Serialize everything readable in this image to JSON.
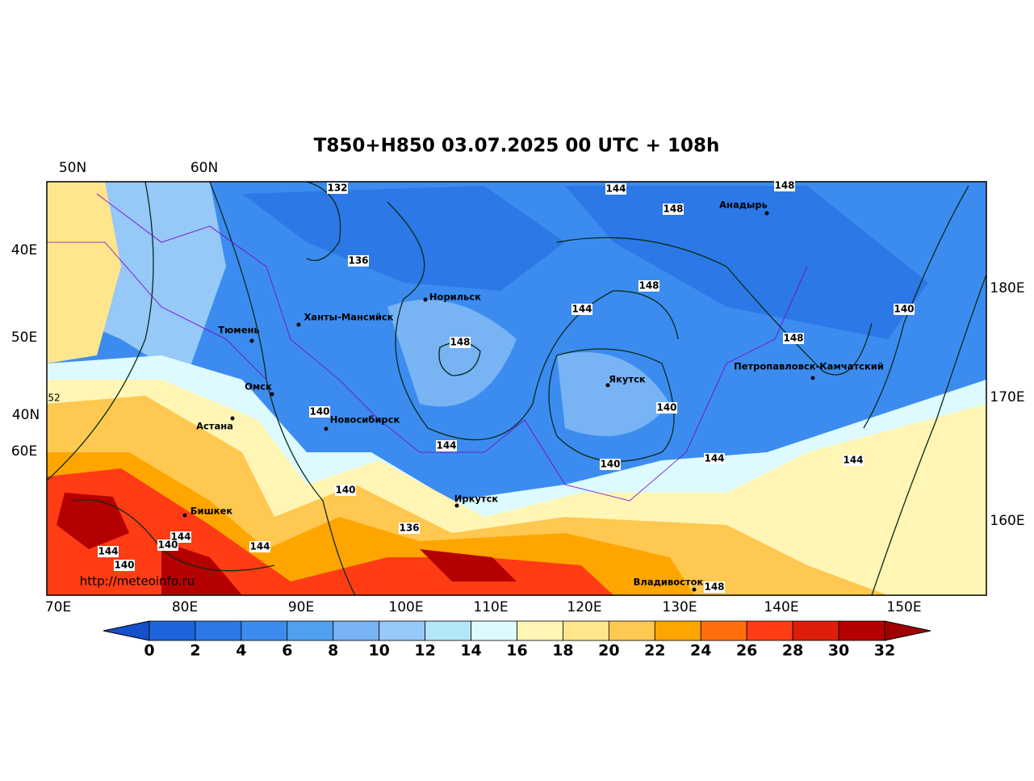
{
  "title": "T850+H850 03.07.2025 00 UTC + 108h",
  "top_labels": [
    "50N",
    "60N"
  ],
  "left_labels": [
    "40E",
    "50E",
    "40N",
    "60E"
  ],
  "right_labels": [
    "180E",
    "170E",
    "160E"
  ],
  "bottom_labels": [
    "70E",
    "80E",
    "90E",
    "100E",
    "110E",
    "120E",
    "130E",
    "140E",
    "150E"
  ],
  "edge_label": "52",
  "cities": [
    "Тюмень",
    "Ханты-Мансийск",
    "Норильск",
    "Омск",
    "Астана",
    "Новосибирск",
    "Бишкек",
    "Иркутск",
    "Якутск",
    "Анадырь",
    "Петропавловск-Камчатский",
    "Владивосток"
  ],
  "contour_labels": [
    "132",
    "136",
    "144",
    "148",
    "148",
    "148",
    "144",
    "148",
    "140",
    "148",
    "140",
    "140",
    "144",
    "140",
    "144",
    "144",
    "140",
    "136",
    "144",
    "140",
    "144",
    "144",
    "140",
    "148"
  ],
  "watermark": "http://meteoinfo.ru",
  "colorbar": {
    "ticks": [
      0,
      2,
      4,
      6,
      8,
      10,
      12,
      14,
      16,
      18,
      20,
      22,
      24,
      26,
      28,
      30,
      32
    ],
    "colors": [
      "#1e64dc",
      "#2c78e6",
      "#3c8cf0",
      "#50a0f0",
      "#78b4f4",
      "#96c8f8",
      "#b4e6fa",
      "#dcfaff",
      "#fff5b4",
      "#ffe68c",
      "#ffc850",
      "#ffa500",
      "#ff6e0a",
      "#ff3c14",
      "#dc1e0a",
      "#b40000"
    ],
    "under": "#1450c8",
    "over": "#a00000"
  }
}
